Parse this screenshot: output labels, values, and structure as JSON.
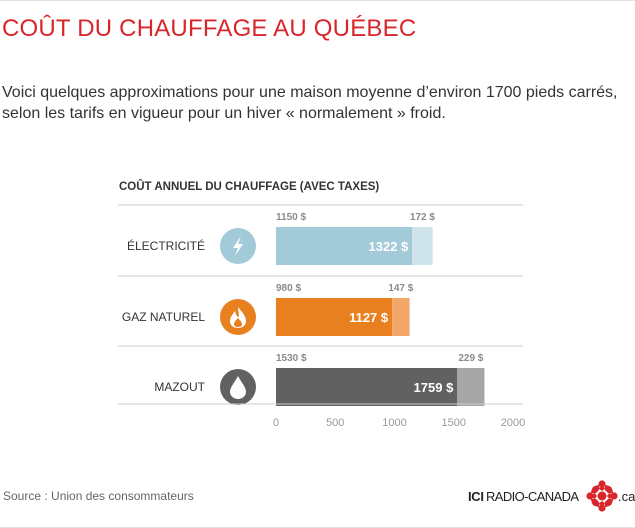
{
  "header": {
    "title": "COÛT DU CHAUFFAGE AU QUÉBEC",
    "subtitle": "Voici quelques approximations pour une maison moyenne d’environ 1700 pieds carrés, selon les tarifs en vigueur pour un hiver « normalement » froid."
  },
  "chart_data": {
    "type": "bar",
    "orientation": "horizontal",
    "stacked": true,
    "title": "COÛT ANNUEL DU CHAUFFAGE (AVEC TAXES)",
    "categories": [
      "ÉLECTRICITÉ",
      "GAZ NATUREL",
      "MAZOUT"
    ],
    "base_values": [
      1150,
      980,
      1530
    ],
    "base_labels": [
      "1150 $",
      "980 $",
      "1530 $"
    ],
    "tax_values": [
      172,
      147,
      229
    ],
    "tax_labels": [
      "172 $",
      "147 $",
      "229 $"
    ],
    "total_values": [
      1322,
      1127,
      1759
    ],
    "total_labels": [
      "1322 $",
      "1127 $",
      "1759 $"
    ],
    "icons": [
      "lightning-icon",
      "flame-icon",
      "oil-drop-icon"
    ],
    "colors": {
      "base": [
        "#a3cad8",
        "#e8801f",
        "#616161"
      ],
      "tax": [
        "#cfe3ea",
        "#f2a668",
        "#a6a6a6"
      ],
      "icon_bg": [
        "#a3cad8",
        "#e8801f",
        "#616161"
      ]
    },
    "xlim": [
      0,
      2000
    ],
    "xticks": [
      0,
      500,
      1000,
      1500,
      2000
    ],
    "xtick_labels": [
      "0",
      "500",
      "1000",
      "1500",
      "2000"
    ],
    "grid": false
  },
  "footer": {
    "source": "Source : Union des consommateurs",
    "brand": {
      "ici": "ICI",
      "name": "RADIO-CANADA",
      "tld": ".ca",
      "color": "#d9262b"
    }
  }
}
